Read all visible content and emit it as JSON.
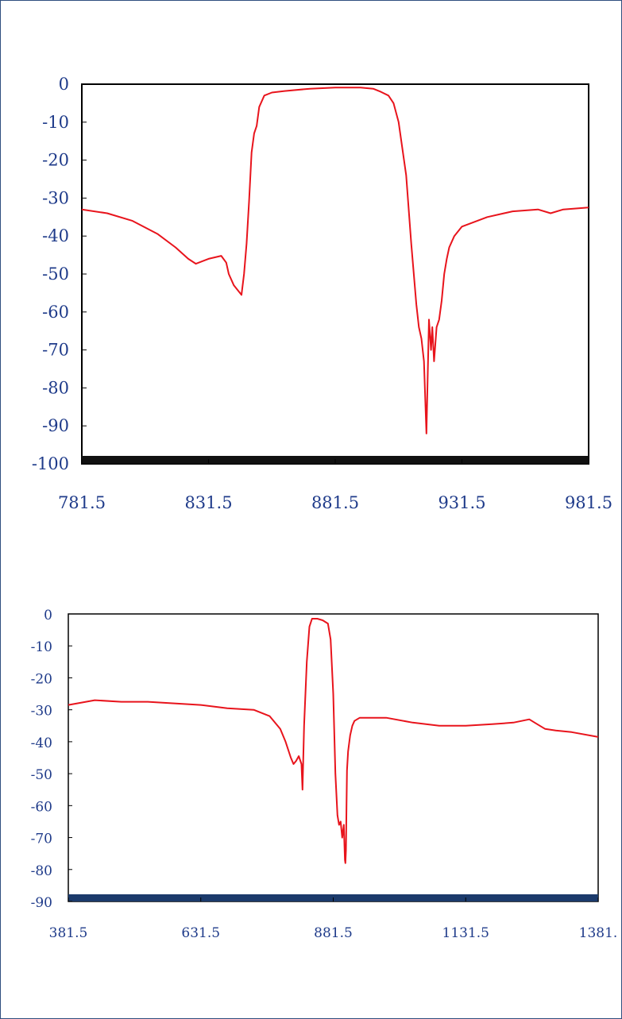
{
  "chart_data": [
    {
      "type": "line",
      "title": "",
      "xlabel": "",
      "ylabel": "",
      "xlim": [
        781.5,
        981.5
      ],
      "ylim": [
        -100,
        0
      ],
      "x_tick_labels": [
        "781.5",
        "831.5",
        "881.5",
        "931.5",
        "981.5"
      ],
      "y_tick_labels": [
        "0",
        "-10",
        "-20",
        "-30",
        "-40",
        "-50",
        "-60",
        "-70",
        "-80",
        "-90",
        "-100"
      ],
      "grid": false,
      "legend": "none",
      "colors": {
        "line": "#e8141c",
        "axis": "#000000",
        "baseline_band": "#111111",
        "tick_text": "#1f3b8a"
      },
      "series": [
        {
          "x": [
            781.5,
            791.5,
            801.5,
            811.5,
            818.5,
            823.5,
            826.5,
            831.5,
            836.5,
            838.5,
            839.5,
            841.5,
            844.5,
            845.5,
            846.5,
            847.5,
            848.5,
            849.5,
            850.5,
            851.5,
            853.5,
            856.5,
            861.5,
            871.5,
            881.5,
            891.5,
            896.5,
            899.5,
            902.5,
            904.5,
            906.5,
            909.5,
            911.5,
            913.5,
            914.5,
            915.5,
            916.5,
            917.5,
            918.5,
            918.9,
            919.3,
            919.8,
            920.5,
            921.5,
            922.5,
            923.5,
            924.5,
            925.5,
            926.5,
            928.5,
            931.5,
            941.5,
            951.5,
            961.5,
            966.5,
            971.5,
            981.5
          ],
          "y": [
            -33,
            -34,
            -36,
            -39.5,
            -43,
            -46,
            -47.3,
            -46,
            -45.2,
            -47,
            -50,
            -53,
            -55.5,
            -50,
            -42,
            -31,
            -18,
            -13,
            -11,
            -6,
            -3,
            -2.2,
            -1.8,
            -1.2,
            -0.9,
            -0.9,
            -1.2,
            -2,
            -3,
            -5,
            -10,
            -24,
            -42,
            -58,
            -64,
            -67,
            -73,
            -92,
            -62,
            -66,
            -70,
            -64,
            -73,
            -64,
            -62,
            -57,
            -50,
            -46,
            -43,
            -40,
            -37.5,
            -35,
            -33.5,
            -33,
            -34,
            -33,
            -32.5
          ]
        }
      ]
    },
    {
      "type": "line",
      "title": "",
      "xlabel": "",
      "ylabel": "",
      "xlim": [
        381.5,
        1381.5
      ],
      "ylim": [
        -90,
        0
      ],
      "x_tick_labels": [
        "381.5",
        "631.5",
        "881.5",
        "1131.5",
        "1381."
      ],
      "y_tick_labels": [
        "0",
        "-10",
        "-20",
        "-30",
        "-40",
        "-50",
        "-60",
        "-70",
        "-80",
        "-90"
      ],
      "grid": false,
      "legend": "none",
      "colors": {
        "line": "#e8141c",
        "axis": "#000000",
        "baseline_band": "#1b3a6b",
        "tick_text": "#1f3b8a"
      },
      "series": [
        {
          "x": [
            381.5,
            431.5,
            481.5,
            531.5,
            581.5,
            631.5,
            681.5,
            731.5,
            761.5,
            781.5,
            791.5,
            801.5,
            806.5,
            811.5,
            816.5,
            821.5,
            823.5,
            826.5,
            831.5,
            836.5,
            841.5,
            851.5,
            861.5,
            871.5,
            876.5,
            881.5,
            885.5,
            889.5,
            892.5,
            895.5,
            898.5,
            901.5,
            903.5,
            904.5,
            905.5,
            906.5,
            907.5,
            909.5,
            913.5,
            917.5,
            921.5,
            926.5,
            931.5,
            941.5,
            951.5,
            981.5,
            1031.5,
            1081.5,
            1131.5,
            1181.5,
            1221.5,
            1251.5,
            1261.5,
            1271.5,
            1281.5,
            1301.5,
            1331.5,
            1381.5
          ],
          "y": [
            -28.5,
            -27,
            -27.5,
            -27.5,
            -28,
            -28.5,
            -29.5,
            -30,
            -32,
            -36,
            -40,
            -45,
            -47,
            -46,
            -44.5,
            -47,
            -55,
            -35,
            -15,
            -4,
            -1.5,
            -1.5,
            -2,
            -3,
            -8,
            -25,
            -50,
            -63,
            -66,
            -65,
            -70,
            -66,
            -77,
            -78,
            -74,
            -60,
            -49,
            -43,
            -38,
            -35,
            -33.5,
            -33,
            -32.5,
            -32.5,
            -32.5,
            -32.5,
            -34,
            -35,
            -35,
            -34.5,
            -34,
            -33,
            -34,
            -35,
            -36,
            -36.5,
            -37,
            -38.5
          ]
        }
      ]
    }
  ]
}
